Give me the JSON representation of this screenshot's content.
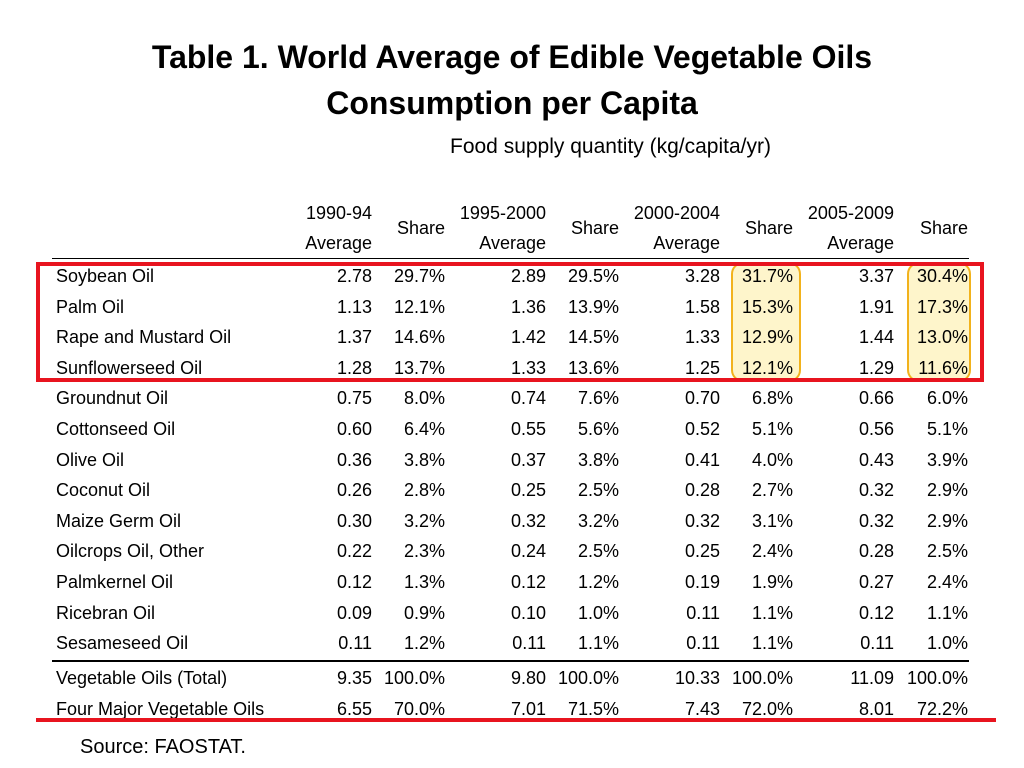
{
  "title_line1": "Table 1.  World Average of Edible Vegetable Oils",
  "title_line2": "Consumption per Capita",
  "subtitle": "Food supply quantity (kg/capita/yr)",
  "columns": [
    {
      "line1": "1990-94",
      "line2": "Average"
    },
    {
      "share": "Share"
    },
    {
      "line1": "1995-2000",
      "line2": "Average"
    },
    {
      "share": "Share"
    },
    {
      "line1": "2000-2004",
      "line2": "Average"
    },
    {
      "share": "Share"
    },
    {
      "line1": "2005-2009",
      "line2": "Average"
    },
    {
      "share": "Share"
    }
  ],
  "rows": [
    {
      "name": "Soybean Oil",
      "values": [
        "2.78",
        "29.7%",
        "2.89",
        "29.5%",
        "3.28",
        "31.7%",
        "3.37",
        "30.4%"
      ]
    },
    {
      "name": "Palm Oil",
      "values": [
        "1.13",
        "12.1%",
        "1.36",
        "13.9%",
        "1.58",
        "15.3%",
        "1.91",
        "17.3%"
      ]
    },
    {
      "name": "Rape and Mustard Oil",
      "values": [
        "1.37",
        "14.6%",
        "1.42",
        "14.5%",
        "1.33",
        "12.9%",
        "1.44",
        "13.0%"
      ]
    },
    {
      "name": "Sunflowerseed Oil",
      "values": [
        "1.28",
        "13.7%",
        "1.33",
        "13.6%",
        "1.25",
        "12.1%",
        "1.29",
        "11.6%"
      ]
    },
    {
      "name": "Groundnut Oil",
      "values": [
        "0.75",
        "8.0%",
        "0.74",
        "7.6%",
        "0.70",
        "6.8%",
        "0.66",
        "6.0%"
      ]
    },
    {
      "name": "Cottonseed Oil",
      "values": [
        "0.60",
        "6.4%",
        "0.55",
        "5.6%",
        "0.52",
        "5.1%",
        "0.56",
        "5.1%"
      ]
    },
    {
      "name": "Olive Oil",
      "values": [
        "0.36",
        "3.8%",
        "0.37",
        "3.8%",
        "0.41",
        "4.0%",
        "0.43",
        "3.9%"
      ]
    },
    {
      "name": "Coconut Oil",
      "values": [
        "0.26",
        "2.8%",
        "0.25",
        "2.5%",
        "0.28",
        "2.7%",
        "0.32",
        "2.9%"
      ]
    },
    {
      "name": "Maize Germ Oil",
      "values": [
        "0.30",
        "3.2%",
        "0.32",
        "3.2%",
        "0.32",
        "3.1%",
        "0.32",
        "2.9%"
      ]
    },
    {
      "name": "Oilcrops Oil, Other",
      "values": [
        "0.22",
        "2.3%",
        "0.24",
        "2.5%",
        "0.25",
        "2.4%",
        "0.28",
        "2.5%"
      ]
    },
    {
      "name": "Palmkernel Oil",
      "values": [
        "0.12",
        "1.3%",
        "0.12",
        "1.2%",
        "0.19",
        "1.9%",
        "0.27",
        "2.4%"
      ]
    },
    {
      "name": "Ricebran Oil",
      "values": [
        "0.09",
        "0.9%",
        "0.10",
        "1.0%",
        "0.11",
        "1.1%",
        "0.12",
        "1.1%"
      ]
    },
    {
      "name": "Sesameseed Oil",
      "values": [
        "0.11",
        "1.2%",
        "0.11",
        "1.1%",
        "0.11",
        "1.1%",
        "0.11",
        "1.0%"
      ]
    }
  ],
  "totals": [
    {
      "name": "Vegetable Oils (Total)",
      "values": [
        "9.35",
        "100.0%",
        "9.80",
        "100.0%",
        "10.33",
        "100.0%",
        "11.09",
        "100.0%"
      ]
    },
    {
      "name": "Four Major Vegetable Oils",
      "values": [
        "6.55",
        "70.0%",
        "7.01",
        "71.5%",
        "7.43",
        "72.0%",
        "8.01",
        "72.2%"
      ]
    }
  ],
  "source": "Source: FAOSTAT.",
  "colors": {
    "highlight_box": "#e8141f",
    "highlight_cells": "#f2b21c",
    "highlight_fill": "#fdeca0"
  }
}
